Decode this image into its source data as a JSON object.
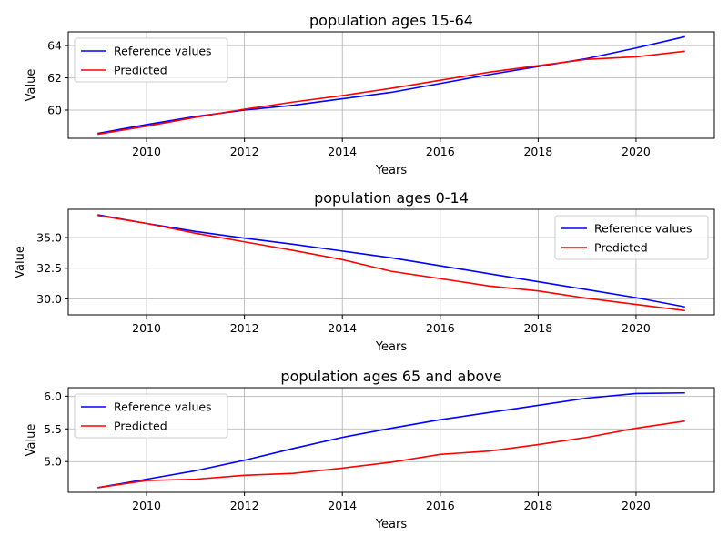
{
  "chart_data": [
    {
      "type": "line",
      "title": "population ages 15-64",
      "xlabel": "Years",
      "ylabel": "Value",
      "x": [
        2009,
        2010,
        2011,
        2012,
        2013,
        2014,
        2015,
        2016,
        2017,
        2018,
        2019,
        2020,
        2021
      ],
      "xlim": [
        2008.4,
        2021.6
      ],
      "ylim": [
        58.25,
        64.85
      ],
      "xticks": [
        2010,
        2012,
        2014,
        2016,
        2018,
        2020
      ],
      "xtick_labels": [
        "2010",
        "2012",
        "2014",
        "2016",
        "2018",
        "2020"
      ],
      "yticks": [
        60,
        62,
        64
      ],
      "ytick_labels": [
        "60",
        "62",
        "64"
      ],
      "grid": true,
      "legend_position": "top-left",
      "series": [
        {
          "name": "Reference values",
          "color": "#0000ff",
          "values": [
            58.55,
            59.1,
            59.6,
            60.0,
            60.3,
            60.7,
            61.1,
            61.65,
            62.2,
            62.7,
            63.2,
            63.85,
            64.55
          ]
        },
        {
          "name": "Predicted",
          "color": "#ff0000",
          "values": [
            58.5,
            59.0,
            59.55,
            60.05,
            60.5,
            60.9,
            61.35,
            61.85,
            62.35,
            62.75,
            63.15,
            63.3,
            63.65
          ]
        }
      ]
    },
    {
      "type": "line",
      "title": "population ages 0-14",
      "xlabel": "Years",
      "ylabel": "Value",
      "x": [
        2009,
        2010,
        2011,
        2012,
        2013,
        2014,
        2015,
        2016,
        2017,
        2018,
        2019,
        2020,
        2021
      ],
      "xlim": [
        2008.4,
        2021.6
      ],
      "ylim": [
        28.7,
        37.3
      ],
      "xticks": [
        2010,
        2012,
        2014,
        2016,
        2018,
        2020
      ],
      "xtick_labels": [
        "2010",
        "2012",
        "2014",
        "2016",
        "2018",
        "2020"
      ],
      "yticks": [
        30.0,
        32.5,
        35.0
      ],
      "ytick_labels": [
        "30.0",
        "32.5",
        "35.0"
      ],
      "grid": true,
      "legend_position": "top-right",
      "series": [
        {
          "name": "Reference values",
          "color": "#0000ff",
          "values": [
            36.85,
            36.15,
            35.5,
            34.95,
            34.45,
            33.9,
            33.35,
            32.7,
            32.05,
            31.4,
            30.75,
            30.1,
            29.35
          ]
        },
        {
          "name": "Predicted",
          "color": "#ff0000",
          "values": [
            36.8,
            36.15,
            35.35,
            34.65,
            33.95,
            33.2,
            32.25,
            31.65,
            31.05,
            30.65,
            30.05,
            29.55,
            29.05
          ]
        }
      ]
    },
    {
      "type": "line",
      "title": "population ages 65 and above",
      "xlabel": "Years",
      "ylabel": "Value",
      "x": [
        2009,
        2010,
        2011,
        2012,
        2013,
        2014,
        2015,
        2016,
        2017,
        2018,
        2019,
        2020,
        2021
      ],
      "xlim": [
        2008.4,
        2021.6
      ],
      "ylim": [
        4.53,
        6.13
      ],
      "xticks": [
        2010,
        2012,
        2014,
        2016,
        2018,
        2020
      ],
      "xtick_labels": [
        "2010",
        "2012",
        "2014",
        "2016",
        "2018",
        "2020"
      ],
      "yticks": [
        5.0,
        5.5,
        6.0
      ],
      "ytick_labels": [
        "5.0",
        "5.5",
        "6.0"
      ],
      "grid": true,
      "legend_position": "top-left",
      "series": [
        {
          "name": "Reference values",
          "color": "#0000ff",
          "values": [
            4.6,
            4.73,
            4.86,
            5.02,
            5.2,
            5.37,
            5.51,
            5.64,
            5.75,
            5.86,
            5.97,
            6.04,
            6.05
          ]
        },
        {
          "name": "Predicted",
          "color": "#ff0000",
          "values": [
            4.6,
            4.71,
            4.73,
            4.79,
            4.82,
            4.9,
            4.99,
            5.11,
            5.16,
            5.26,
            5.37,
            5.51,
            5.62
          ]
        }
      ]
    }
  ]
}
